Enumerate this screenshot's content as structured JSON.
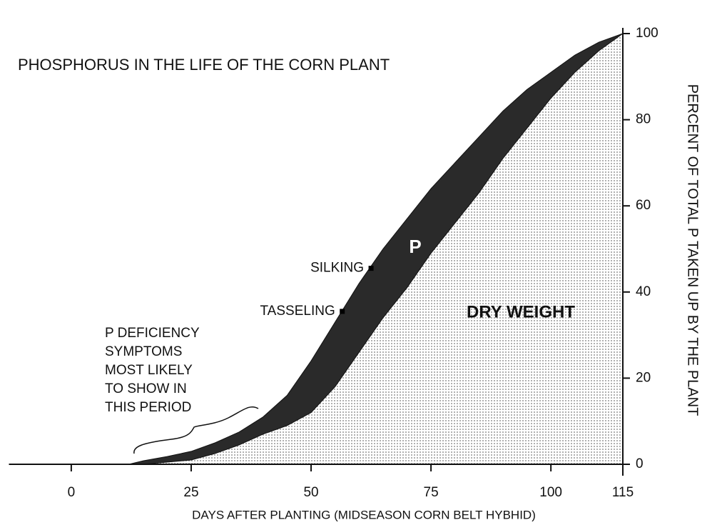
{
  "chart_data": {
    "type": "area",
    "title": "PHOSPHORUS IN THE LIFE OF THE CORN   PLANT",
    "x_label": "DAYS AFTER PLANTING (MIDSEASON CORN BELT HYBHID)",
    "y_label": "PERCENT OF TOTAL P TAKEN UP BY THE PLANT",
    "x": [
      -13,
      0,
      12,
      15,
      20,
      25,
      30,
      35,
      40,
      45,
      50,
      55,
      60,
      65,
      70,
      75,
      80,
      85,
      90,
      95,
      100,
      105,
      110,
      115
    ],
    "series": [
      {
        "name": "P",
        "color": "#2a2a2a",
        "values": [
          0,
          0,
          0,
          0.8,
          1.8,
          3,
          5,
          7.5,
          11,
          16,
          24,
          33,
          42,
          50,
          57,
          64,
          70,
          76,
          82,
          87,
          91,
          95,
          98,
          100
        ]
      },
      {
        "name": "DRY WEIGHT",
        "color": "#8a8a8a",
        "values": [
          0,
          0,
          0,
          0,
          0.5,
          1,
          2.5,
          4.5,
          7,
          9,
          12,
          18,
          26,
          34,
          41,
          49,
          56,
          63,
          71,
          78,
          85,
          91,
          96,
          100
        ]
      }
    ],
    "markers": [
      {
        "label": "SILKING",
        "x": 62.5,
        "y": 45.5
      },
      {
        "label": "TASSELING",
        "x": 56.5,
        "y": 35.5
      }
    ],
    "annotation": [
      "P DEFICIENCY",
      "SYMPTOMS",
      "MOST LIKELY",
      "TO SHOW IN",
      "THIS PERIOD"
    ],
    "xlim": [
      -13,
      115
    ],
    "ylim": [
      0,
      100
    ],
    "xticks": [
      0,
      25,
      50,
      75,
      100,
      115
    ],
    "yticks": [
      0,
      20,
      40,
      60,
      80,
      100
    ]
  }
}
